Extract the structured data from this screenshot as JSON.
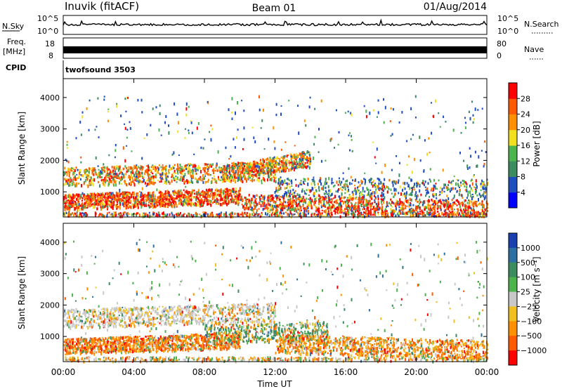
{
  "header": {
    "station": "Inuvik (fitACF)",
    "beam": "Beam 01",
    "date": "01/Aug/2014"
  },
  "top_panels": {
    "nsky": {
      "label": "N.Sky",
      "ticks": [
        "10^5",
        "10^0"
      ],
      "right_label": "N.Search",
      "right_ticks": [
        "10^5",
        "10^0"
      ]
    },
    "freq": {
      "label_line1": "Freq.",
      "label_line2": "[MHz]",
      "ticks": [
        "18",
        "8"
      ],
      "right_label": "Nave",
      "right_ticks": [
        "80",
        "0"
      ]
    },
    "cpid": {
      "label": "CPID",
      "program": "twofsound 3503"
    }
  },
  "chart_data": [
    {
      "type": "heatmap",
      "name": "power",
      "xlabel": "",
      "ylabel": "Slant Range [km]",
      "x_range_hours": [
        0,
        24
      ],
      "ylim": [
        200,
        4600
      ],
      "y_ticks": [
        1000,
        2000,
        3000,
        4000
      ],
      "colorbar": {
        "label": "Power [dB]",
        "ticks": [
          "4",
          "8",
          "12",
          "16",
          "20",
          "24",
          "28"
        ],
        "colors": [
          "#0000ff",
          "#1f4fbf",
          "#3c8c60",
          "#4db34d",
          "#f0e020",
          "#ff9000",
          "#ff5a00",
          "#ff0000"
        ]
      }
    },
    {
      "type": "heatmap",
      "name": "velocity",
      "xlabel": "Time UT",
      "ylabel": "Slant Range [km]",
      "x_range_hours": [
        0,
        24
      ],
      "x_ticks": [
        "00:00",
        "04:00",
        "08:00",
        "12:00",
        "16:00",
        "20:00",
        "00:00"
      ],
      "ylim": [
        200,
        4600
      ],
      "y_ticks": [
        1000,
        2000,
        3000,
        4000
      ],
      "colorbar": {
        "label": "Velocity [m s⁻¹]",
        "ticks": [
          "1000",
          "500",
          "100",
          "25",
          "−25",
          "−100",
          "−500",
          "−1000"
        ],
        "colors": [
          "#1a3fb0",
          "#2d6fa0",
          "#3c8c60",
          "#4db34d",
          "#c8c8c8",
          "#f0c020",
          "#ff9000",
          "#ff5a00",
          "#ff0000"
        ]
      }
    }
  ]
}
